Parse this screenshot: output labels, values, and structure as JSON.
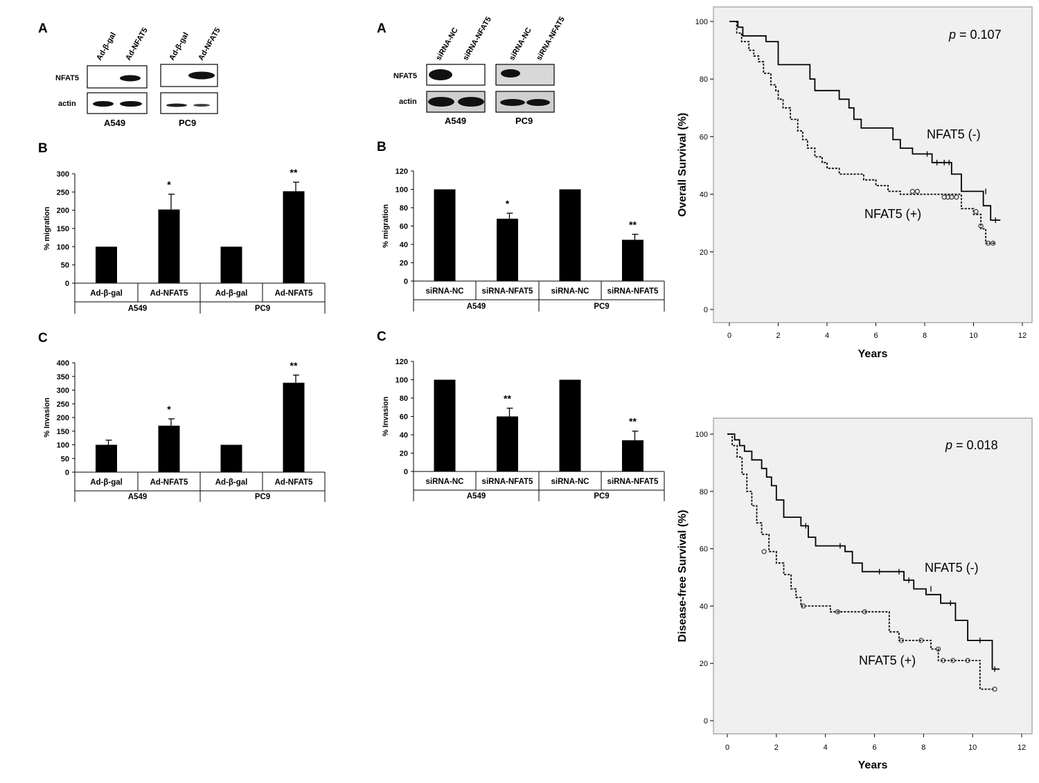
{
  "blots": [
    {
      "id": "ad-blot",
      "panel_letter": "A",
      "lanes": [
        "Ad-β-gal",
        "Ad-NFAT5",
        "Ad-β-gal",
        "Ad-NFAT5"
      ],
      "rows": [
        "NFAT5",
        "actin"
      ],
      "cells": [
        "A549",
        "PC9"
      ]
    },
    {
      "id": "si-blot",
      "panel_letter": "A",
      "lanes": [
        "siRNA-NC",
        "siRNA-NFAT5",
        "siRNA-NC",
        "siRNA-NFAT5"
      ],
      "rows": [
        "NFAT5",
        "actin"
      ],
      "cells": [
        "A549",
        "PC9"
      ]
    }
  ],
  "chart_data": [
    {
      "id": "ad-migration",
      "panel_letter": "B",
      "type": "bar",
      "ylabel": "% migration",
      "ylim": [
        0,
        300
      ],
      "yticks": [
        0,
        50,
        100,
        150,
        200,
        250,
        300
      ],
      "categories": [
        "Ad-β-gal",
        "Ad-NFAT5",
        "Ad-β-gal",
        "Ad-NFAT5"
      ],
      "groups": [
        "A549",
        "PC9"
      ],
      "values": [
        100,
        202,
        100,
        252
      ],
      "errors": [
        0,
        42,
        0,
        25
      ],
      "significance": [
        "",
        "*",
        "",
        "**"
      ]
    },
    {
      "id": "ad-invasion",
      "panel_letter": "C",
      "type": "bar",
      "ylabel": "% Invasion",
      "ylim": [
        0,
        400
      ],
      "yticks": [
        0,
        50,
        100,
        150,
        200,
        250,
        300,
        350,
        400
      ],
      "categories": [
        "Ad-β-gal",
        "Ad-NFAT5",
        "Ad-β-gal",
        "Ad-NFAT5"
      ],
      "groups": [
        "A549",
        "PC9"
      ],
      "values": [
        100,
        170,
        100,
        327
      ],
      "errors": [
        17,
        25,
        0,
        28
      ],
      "significance": [
        "",
        "*",
        "",
        "**"
      ]
    },
    {
      "id": "si-migration",
      "panel_letter": "B",
      "type": "bar",
      "ylabel": "% migration",
      "ylim": [
        0,
        120
      ],
      "yticks": [
        0,
        20,
        40,
        60,
        80,
        100,
        120
      ],
      "categories": [
        "siRNA-NC",
        "siRNA-NFAT5",
        "siRNA-NC",
        "siRNA-NFAT5"
      ],
      "groups": [
        "A549",
        "PC9"
      ],
      "values": [
        100,
        68,
        100,
        45
      ],
      "errors": [
        0,
        6,
        0,
        6
      ],
      "significance": [
        "",
        "*",
        "",
        "**"
      ]
    },
    {
      "id": "si-invasion",
      "panel_letter": "C",
      "type": "bar",
      "ylabel": "% Invasion",
      "ylim": [
        0,
        120
      ],
      "yticks": [
        0,
        20,
        40,
        60,
        80,
        100,
        120
      ],
      "categories": [
        "siRNA-NC",
        "siRNA-NFAT5",
        "siRNA-NC",
        "siRNA-NFAT5"
      ],
      "groups": [
        "A549",
        "PC9"
      ],
      "values": [
        100,
        60,
        100,
        34
      ],
      "errors": [
        0,
        9,
        0,
        10
      ],
      "significance": [
        "",
        "**",
        "",
        "**"
      ]
    },
    {
      "id": "os-km",
      "type": "line",
      "subtype": "kaplan-meier",
      "ylabel": "Overall Survival (%)",
      "xlabel": "Years",
      "xlim": [
        0,
        12
      ],
      "ylim": [
        0,
        100
      ],
      "xticks": [
        0,
        2,
        4,
        6,
        8,
        10,
        12
      ],
      "yticks": [
        0,
        20,
        40,
        60,
        80,
        100
      ],
      "p_label": "p",
      "p_text": " = 0.107",
      "background": "#f0f0f0",
      "series": [
        {
          "name": "NFAT5 (-)",
          "style": "solid",
          "x": [
            0,
            0.35,
            0.55,
            1.5,
            2.0,
            3.3,
            3.5,
            4.5,
            4.9,
            5.1,
            5.4,
            6.7,
            7.0,
            7.5,
            8.3,
            9.1,
            9.5,
            10.4,
            10.7,
            11.1
          ],
          "y": [
            100,
            98,
            95,
            93,
            85,
            80,
            76,
            73,
            70,
            66,
            63,
            59,
            56,
            54,
            51,
            47,
            41,
            36,
            31,
            31
          ],
          "censored": [
            [
              8.1,
              54
            ],
            [
              8.5,
              51
            ],
            [
              8.8,
              51
            ],
            [
              9.0,
              51
            ],
            [
              10.5,
              41
            ],
            [
              10.9,
              31
            ]
          ]
        },
        {
          "name": "NFAT5 (+)",
          "style": "dotted",
          "x": [
            0,
            0.3,
            0.5,
            0.8,
            1.0,
            1.2,
            1.4,
            1.7,
            1.9,
            2.0,
            2.2,
            2.5,
            2.8,
            3.0,
            3.2,
            3.5,
            3.8,
            4.0,
            4.5,
            5.5,
            6.0,
            6.5,
            7.0,
            9.5,
            10.0,
            10.3,
            10.5,
            10.9
          ],
          "y": [
            100,
            96,
            93,
            90,
            88,
            86,
            82,
            78,
            76,
            73,
            70,
            66,
            62,
            59,
            56,
            53,
            51,
            49,
            47,
            45,
            43,
            41,
            40,
            35,
            33,
            28,
            23,
            23
          ],
          "censored": [
            [
              7.5,
              41
            ],
            [
              7.7,
              41
            ],
            [
              8.8,
              39
            ],
            [
              8.95,
              39
            ],
            [
              9.1,
              39
            ],
            [
              9.3,
              39
            ],
            [
              10.1,
              34
            ],
            [
              10.3,
              29
            ],
            [
              10.6,
              23
            ],
            [
              10.8,
              23
            ]
          ]
        }
      ]
    },
    {
      "id": "dfs-km",
      "type": "line",
      "subtype": "kaplan-meier",
      "ylabel": "Disease-free Survival (%)",
      "xlabel": "Years",
      "xlim": [
        0,
        12
      ],
      "ylim": [
        0,
        100
      ],
      "xticks": [
        0,
        2,
        4,
        6,
        8,
        10,
        12
      ],
      "yticks": [
        0,
        20,
        40,
        60,
        80,
        100
      ],
      "p_label": "p",
      "p_text": " = 0.018",
      "background": "#f0f0f0",
      "series": [
        {
          "name": "NFAT5 (-)",
          "style": "solid",
          "x": [
            0,
            0.3,
            0.5,
            0.7,
            1.0,
            1.4,
            1.6,
            1.8,
            2.0,
            2.3,
            3.0,
            3.3,
            3.6,
            4.8,
            5.1,
            5.5,
            7.2,
            7.6,
            8.1,
            8.7,
            9.3,
            9.8,
            10.8,
            11.1
          ],
          "y": [
            100,
            98,
            96,
            94,
            91,
            88,
            85,
            82,
            77,
            71,
            68,
            64,
            61,
            59,
            55,
            52,
            49,
            46,
            44,
            41,
            35,
            28,
            18,
            18
          ],
          "censored": [
            [
              3.2,
              68
            ],
            [
              4.6,
              61
            ],
            [
              6.2,
              52
            ],
            [
              7.0,
              52
            ],
            [
              7.4,
              49
            ],
            [
              8.3,
              46
            ],
            [
              9.1,
              41
            ],
            [
              10.3,
              28
            ],
            [
              10.9,
              18
            ]
          ]
        },
        {
          "name": "NFAT5 (+)",
          "style": "dotted",
          "x": [
            0,
            0.2,
            0.4,
            0.6,
            0.8,
            1.0,
            1.2,
            1.4,
            1.7,
            2.0,
            2.3,
            2.6,
            2.8,
            3.0,
            3.4,
            4.2,
            5.0,
            6.0,
            6.6,
            7.0,
            8.3,
            8.6,
            10.0,
            10.3,
            10.9
          ],
          "y": [
            100,
            96,
            92,
            86,
            80,
            75,
            69,
            65,
            59,
            55,
            51,
            46,
            43,
            40,
            40,
            38,
            38,
            38,
            31,
            28,
            25,
            21,
            21,
            11,
            11
          ],
          "censored": [
            [
              1.5,
              59
            ],
            [
              3.1,
              40
            ],
            [
              4.5,
              38
            ],
            [
              5.6,
              38
            ],
            [
              7.1,
              28
            ],
            [
              7.9,
              28
            ],
            [
              8.6,
              25
            ],
            [
              8.8,
              21
            ],
            [
              9.2,
              21
            ],
            [
              9.8,
              21
            ],
            [
              10.9,
              11
            ]
          ]
        }
      ]
    }
  ]
}
